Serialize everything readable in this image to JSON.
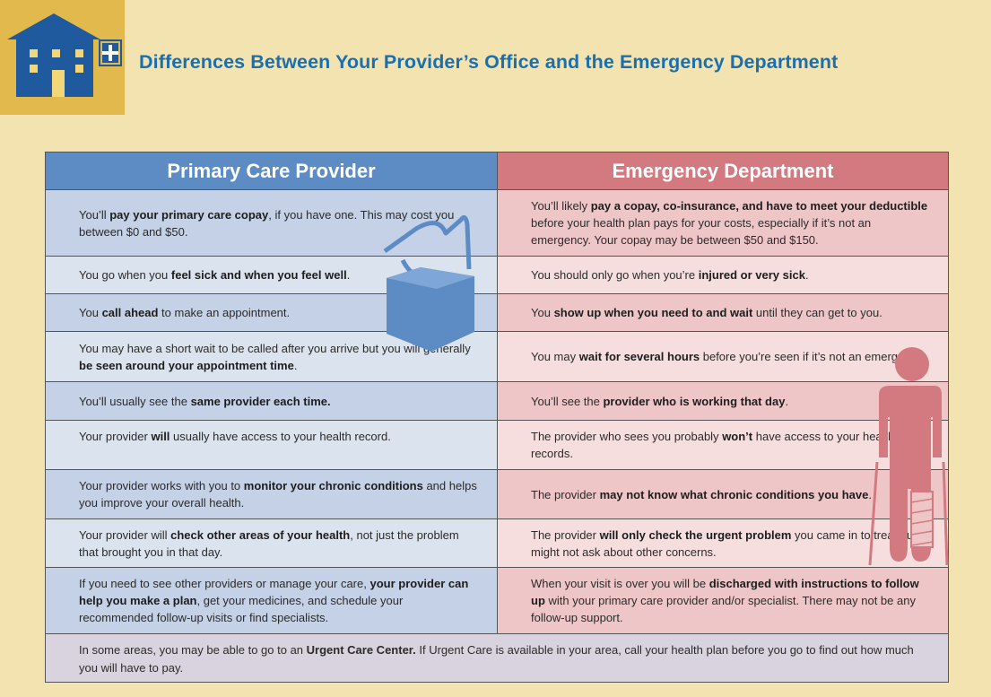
{
  "title": "Differences Between Your Provider’s Office and the Emergency Department",
  "columns": {
    "left": "Primary Care Provider",
    "right": "Emergency Department"
  },
  "rows": [
    {
      "left": [
        {
          "t": "You’ll "
        },
        {
          "b": "pay your primary care copay"
        },
        {
          "t": ", if you have one. This may cost you between $0 and $50."
        }
      ],
      "right": [
        {
          "t": "You’ll likely "
        },
        {
          "b": "pay a copay, co-insurance, and have to meet your deductible"
        },
        {
          "t": " before your health plan pays for your costs, especially if it’s not an emergency. Your copay may be between $50 and $150."
        }
      ]
    },
    {
      "left": [
        {
          "t": "You go when you "
        },
        {
          "b": "feel sick and when you feel well"
        },
        {
          "t": "."
        }
      ],
      "right": [
        {
          "t": "You should only go when you’re "
        },
        {
          "b": "injured or very sick"
        },
        {
          "t": "."
        }
      ]
    },
    {
      "left": [
        {
          "t": "You "
        },
        {
          "b": "call ahead"
        },
        {
          "t": " to make an appointment."
        }
      ],
      "right": [
        {
          "t": "You "
        },
        {
          "b": "show up when you need to and wait"
        },
        {
          "t": " until they can get to you."
        }
      ]
    },
    {
      "left": [
        {
          "t": "You may have a short wait to be called after you arrive but you will generally "
        },
        {
          "b": "be seen around your appointment time"
        },
        {
          "t": "."
        }
      ],
      "right": [
        {
          "t": "You may "
        },
        {
          "b": "wait for several hours"
        },
        {
          "t": " before you’re seen if it’s not an emergency."
        }
      ]
    },
    {
      "left": [
        {
          "t": "You’ll usually see the "
        },
        {
          "b": "same provider each time."
        }
      ],
      "right": [
        {
          "t": "You’ll see the "
        },
        {
          "b": "provider who is working that day"
        },
        {
          "t": "."
        }
      ]
    },
    {
      "left": [
        {
          "t": "Your provider "
        },
        {
          "b": "will"
        },
        {
          "t": " usually have access to your health record."
        }
      ],
      "right": [
        {
          "t": "The provider who sees you probably "
        },
        {
          "b": "won’t"
        },
        {
          "t": " have access to your health records."
        }
      ]
    },
    {
      "left": [
        {
          "t": "Your provider works with you to "
        },
        {
          "b": "monitor your chronic conditions"
        },
        {
          "t": " and helps you improve your overall health."
        }
      ],
      "right": [
        {
          "t": "The provider "
        },
        {
          "b": "may not know what chronic conditions you have"
        },
        {
          "t": "."
        }
      ]
    },
    {
      "left": [
        {
          "t": "Your provider will "
        },
        {
          "b": "check other areas of your health"
        },
        {
          "t": ", not just the problem that brought you in that day."
        }
      ],
      "right": [
        {
          "t": "The provider "
        },
        {
          "b": "will only check the urgent problem"
        },
        {
          "t": " you came in to treat but might not ask about other concerns."
        }
      ]
    },
    {
      "left": [
        {
          "t": "If you need to see other providers or manage your care, "
        },
        {
          "b": "your provider can help you make a plan"
        },
        {
          "t": ", get your medicines, and schedule your recommended follow-up visits or find specialists."
        }
      ],
      "right": [
        {
          "t": "When your visit is over you will be "
        },
        {
          "b": "discharged with instructions to follow up"
        },
        {
          "t": " with your primary care provider and/or specialist. There may not be any follow-up support."
        }
      ]
    }
  ],
  "footer": [
    {
      "t": "In some areas, you may be able to go to an "
    },
    {
      "b": "Urgent Care Center."
    },
    {
      "t": " If Urgent Care is available in your area, call your health plan before you go to find out how much you will have to pay."
    }
  ],
  "colors": {
    "title": "#1a6fb0",
    "left_header": "#5d8cc5",
    "right_header": "#d27a80",
    "background": "#f3e3b0",
    "logo_bg": "#e2b94d",
    "building": "#1f5a9e"
  },
  "icons": [
    "building-icon",
    "tissue-box-icon",
    "person-with-crutches-icon"
  ]
}
